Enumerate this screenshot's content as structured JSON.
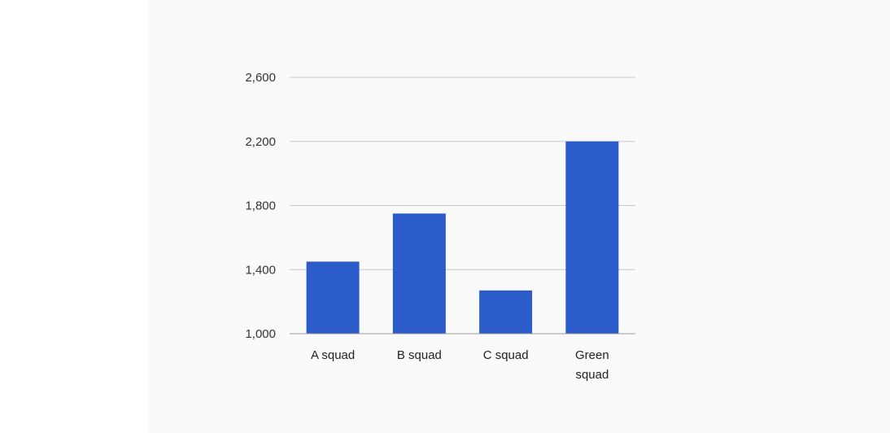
{
  "chart_data": {
    "type": "bar",
    "categories": [
      "A squad",
      "B squad",
      "C squad",
      "Green squad"
    ],
    "category_lines": [
      [
        "A squad"
      ],
      [
        "B squad"
      ],
      [
        "C squad"
      ],
      [
        "Green",
        "squad"
      ]
    ],
    "values": [
      1450,
      1750,
      1270,
      2200
    ],
    "yticks": [
      1000,
      1400,
      1800,
      2200,
      2600
    ],
    "ytick_labels": [
      "1,000",
      "1,400",
      "1,800",
      "2,200",
      "2,600"
    ],
    "ylim": [
      1000,
      2600
    ],
    "title": "",
    "xlabel": "",
    "ylabel": "",
    "grid": true,
    "legend": "none",
    "colors": {
      "bar": "#2c5cc9",
      "grid": "#c8c8c8",
      "axis": "#9a9a9a",
      "background": "#fafafa"
    }
  }
}
